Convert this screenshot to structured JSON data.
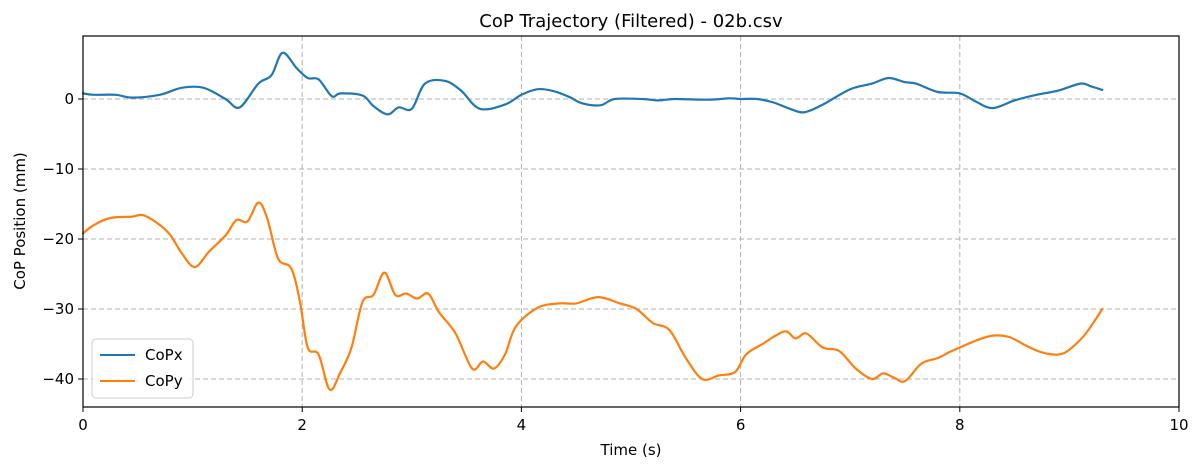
{
  "chart_data": {
    "type": "line",
    "title": "CoP Trajectory (Filtered) - 02b.csv",
    "xlabel": "Time (s)",
    "ylabel": "CoP Position (mm)",
    "xlim": [
      0,
      10
    ],
    "ylim": [
      -44,
      9
    ],
    "xticks": [
      0,
      2,
      4,
      6,
      8,
      10
    ],
    "yticks": [
      0,
      -10,
      -20,
      -30,
      -40
    ],
    "xtick_labels": [
      "0",
      "2",
      "4",
      "6",
      "8",
      "10"
    ],
    "ytick_labels": [
      "0",
      "−10",
      "−20",
      "−30",
      "−40"
    ],
    "grid": true,
    "legend_position": "lower-left",
    "series": [
      {
        "name": "CoPx",
        "color": "#1f77b4",
        "points": [
          [
            0,
            0.8
          ],
          [
            0.1,
            0.6
          ],
          [
            0.3,
            0.6
          ],
          [
            0.45,
            0.2
          ],
          [
            0.7,
            0.6
          ],
          [
            0.9,
            1.6
          ],
          [
            1.1,
            1.6
          ],
          [
            1.3,
            0.0
          ],
          [
            1.43,
            -1.2
          ],
          [
            1.6,
            2.2
          ],
          [
            1.72,
            3.4
          ],
          [
            1.82,
            6.6
          ],
          [
            1.95,
            4.4
          ],
          [
            2.05,
            3.0
          ],
          [
            2.15,
            2.8
          ],
          [
            2.27,
            0.4
          ],
          [
            2.35,
            0.8
          ],
          [
            2.55,
            0.5
          ],
          [
            2.65,
            -1.0
          ],
          [
            2.78,
            -2.2
          ],
          [
            2.88,
            -1.2
          ],
          [
            3.0,
            -1.4
          ],
          [
            3.12,
            2.2
          ],
          [
            3.3,
            2.6
          ],
          [
            3.45,
            1.2
          ],
          [
            3.62,
            -1.4
          ],
          [
            3.85,
            -0.8
          ],
          [
            4.0,
            0.6
          ],
          [
            4.15,
            1.4
          ],
          [
            4.3,
            1.1
          ],
          [
            4.45,
            0.2
          ],
          [
            4.55,
            -0.6
          ],
          [
            4.72,
            -0.9
          ],
          [
            4.85,
            0.0
          ],
          [
            5.1,
            0.0
          ],
          [
            5.25,
            -0.2
          ],
          [
            5.4,
            0.0
          ],
          [
            5.7,
            -0.1
          ],
          [
            5.9,
            0.1
          ],
          [
            6.0,
            0.0
          ],
          [
            6.15,
            0.0
          ],
          [
            6.3,
            -0.5
          ],
          [
            6.45,
            -1.4
          ],
          [
            6.58,
            -1.9
          ],
          [
            6.75,
            -0.8
          ],
          [
            7.0,
            1.4
          ],
          [
            7.2,
            2.2
          ],
          [
            7.35,
            3.0
          ],
          [
            7.5,
            2.4
          ],
          [
            7.6,
            2.2
          ],
          [
            7.8,
            1.0
          ],
          [
            8.0,
            0.8
          ],
          [
            8.15,
            -0.4
          ],
          [
            8.3,
            -1.3
          ],
          [
            8.5,
            -0.2
          ],
          [
            8.7,
            0.6
          ],
          [
            8.9,
            1.2
          ],
          [
            9.1,
            2.2
          ],
          [
            9.2,
            1.8
          ],
          [
            9.3,
            1.3
          ]
        ]
      },
      {
        "name": "CoPy",
        "color": "#ff7f0e",
        "points": [
          [
            0,
            -19.2
          ],
          [
            0.1,
            -18.0
          ],
          [
            0.25,
            -17.0
          ],
          [
            0.45,
            -16.8
          ],
          [
            0.55,
            -16.6
          ],
          [
            0.7,
            -18.0
          ],
          [
            0.8,
            -19.5
          ],
          [
            0.9,
            -22.0
          ],
          [
            1.02,
            -24.0
          ],
          [
            1.15,
            -21.8
          ],
          [
            1.3,
            -19.5
          ],
          [
            1.4,
            -17.3
          ],
          [
            1.5,
            -17.5
          ],
          [
            1.6,
            -14.8
          ],
          [
            1.68,
            -17.0
          ],
          [
            1.78,
            -22.8
          ],
          [
            1.9,
            -24.2
          ],
          [
            1.98,
            -29.0
          ],
          [
            2.05,
            -35.5
          ],
          [
            2.15,
            -36.5
          ],
          [
            2.25,
            -41.5
          ],
          [
            2.35,
            -39.0
          ],
          [
            2.45,
            -35.5
          ],
          [
            2.55,
            -29.0
          ],
          [
            2.65,
            -28.0
          ],
          [
            2.75,
            -24.8
          ],
          [
            2.85,
            -28.0
          ],
          [
            2.95,
            -27.8
          ],
          [
            3.05,
            -28.5
          ],
          [
            3.15,
            -27.8
          ],
          [
            3.25,
            -30.5
          ],
          [
            3.4,
            -33.5
          ],
          [
            3.55,
            -38.5
          ],
          [
            3.65,
            -37.5
          ],
          [
            3.75,
            -38.5
          ],
          [
            3.85,
            -36.5
          ],
          [
            3.95,
            -32.5
          ],
          [
            4.15,
            -29.8
          ],
          [
            4.35,
            -29.2
          ],
          [
            4.5,
            -29.2
          ],
          [
            4.7,
            -28.3
          ],
          [
            4.9,
            -29.2
          ],
          [
            5.05,
            -30.0
          ],
          [
            5.2,
            -32.0
          ],
          [
            5.35,
            -33.0
          ],
          [
            5.5,
            -37.0
          ],
          [
            5.65,
            -40.0
          ],
          [
            5.8,
            -39.5
          ],
          [
            5.95,
            -39.0
          ],
          [
            6.05,
            -36.5
          ],
          [
            6.2,
            -35.0
          ],
          [
            6.4,
            -33.2
          ],
          [
            6.5,
            -34.2
          ],
          [
            6.6,
            -33.5
          ],
          [
            6.75,
            -35.5
          ],
          [
            6.9,
            -36.0
          ],
          [
            7.05,
            -38.5
          ],
          [
            7.2,
            -40.0
          ],
          [
            7.3,
            -39.2
          ],
          [
            7.4,
            -39.8
          ],
          [
            7.5,
            -40.3
          ],
          [
            7.65,
            -37.8
          ],
          [
            7.8,
            -37.0
          ],
          [
            7.9,
            -36.2
          ],
          [
            8.0,
            -35.5
          ],
          [
            8.15,
            -34.5
          ],
          [
            8.3,
            -33.8
          ],
          [
            8.45,
            -34.0
          ],
          [
            8.6,
            -35.2
          ],
          [
            8.75,
            -36.2
          ],
          [
            8.9,
            -36.5
          ],
          [
            9.0,
            -35.8
          ],
          [
            9.15,
            -33.5
          ],
          [
            9.3,
            -30.0
          ]
        ]
      }
    ]
  }
}
